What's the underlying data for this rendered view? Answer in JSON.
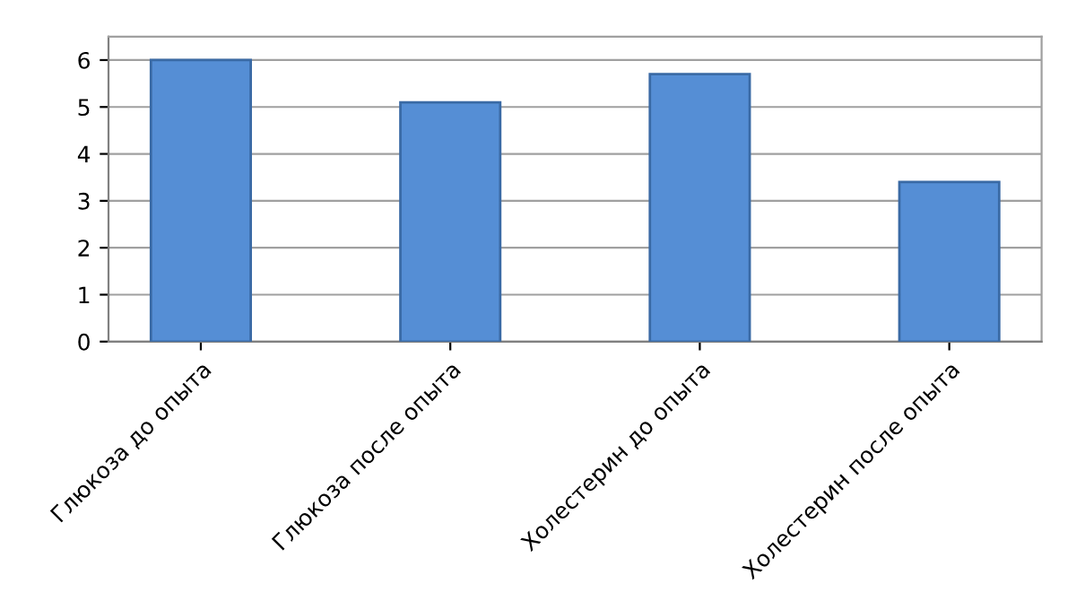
{
  "chart_data": {
    "type": "bar",
    "categories": [
      "Глюкоза до опыта",
      "Глюкоза после опыта",
      "Холестерин до опыта",
      "Холестерин после опыта"
    ],
    "values": [
      6.0,
      5.1,
      5.7,
      3.4
    ],
    "color": "#558ed5",
    "ylim": [
      0,
      6.5
    ],
    "yticks": [
      0,
      1,
      2,
      3,
      4,
      5,
      6
    ],
    "grid": "y"
  }
}
